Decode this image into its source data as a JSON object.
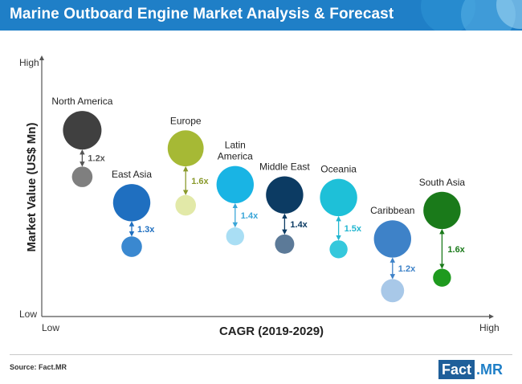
{
  "header": {
    "title": "Marine Outboard Engine Market Analysis & Forecast"
  },
  "footer": {
    "source": "Source: Fact.MR",
    "logo_left": "Fact",
    "logo_right": ".MR"
  },
  "chart_data": {
    "type": "bubble",
    "title": "Marine Outboard Engine Market Analysis & Forecast",
    "xlabel": "CAGR (2019-2029)",
    "ylabel": "Market Value (US$ Mn)",
    "x_ticks": {
      "low": "Low",
      "high": "High"
    },
    "y_ticks": {
      "low": "Low",
      "high": "High"
    },
    "xlim": [
      0,
      100
    ],
    "ylim": [
      0,
      100
    ],
    "regions": [
      {
        "name": "North America",
        "x": 9,
        "y_current": 72,
        "y_future": 54,
        "r_current": 3.0,
        "r_future": 1.6,
        "growth": "1.2x",
        "color_current": "#404040",
        "color_future": "#7f7f7f",
        "label_color": "#555555"
      },
      {
        "name": "East Asia",
        "x": 20,
        "y_current": 44,
        "y_future": 27,
        "r_current": 2.9,
        "r_future": 1.6,
        "growth": "1.3x",
        "color_current": "#1f6fc0",
        "color_future": "#3a88d0",
        "label_color": "#1f6fc0"
      },
      {
        "name": "Europe",
        "x": 32,
        "y_current": 65,
        "y_future": 43,
        "r_current": 2.8,
        "r_future": 1.6,
        "growth": "1.6x",
        "color_current": "#a6b935",
        "color_future": "#e2e9a8",
        "label_color": "#8a9a2c"
      },
      {
        "name": "Latin America",
        "x": 43,
        "y_current": 51,
        "y_future": 31,
        "r_current": 2.9,
        "r_future": 1.4,
        "growth": "1.4x",
        "color_current": "#19b4e4",
        "color_future": "#a9def4",
        "label_color": "#3aa6d8"
      },
      {
        "name": "Middle East",
        "x": 54,
        "y_current": 47,
        "y_future": 28,
        "r_current": 2.9,
        "r_future": 1.5,
        "growth": "1.4x",
        "color_current": "#0c3b63",
        "color_future": "#5c7a98",
        "label_color": "#0c3b63"
      },
      {
        "name": "Oceania",
        "x": 66,
        "y_current": 46,
        "y_future": 26,
        "r_current": 2.9,
        "r_future": 1.4,
        "growth": "1.5x",
        "color_current": "#1ec0d8",
        "color_future": "#35c8dc",
        "label_color": "#22b6d0"
      },
      {
        "name": "Caribbean",
        "x": 78,
        "y_current": 30,
        "y_future": 10,
        "r_current": 2.9,
        "r_future": 1.8,
        "growth": "1.2x",
        "color_current": "#3e82c8",
        "color_future": "#a8c8e8",
        "label_color": "#3e82c8"
      },
      {
        "name": "South Asia",
        "x": 89,
        "y_current": 41,
        "y_future": 15,
        "r_current": 2.9,
        "r_future": 1.4,
        "growth": "1.6x",
        "color_current": "#1a7a1a",
        "color_future": "#1e9a1e",
        "label_color": "#1a7a1a"
      }
    ]
  }
}
